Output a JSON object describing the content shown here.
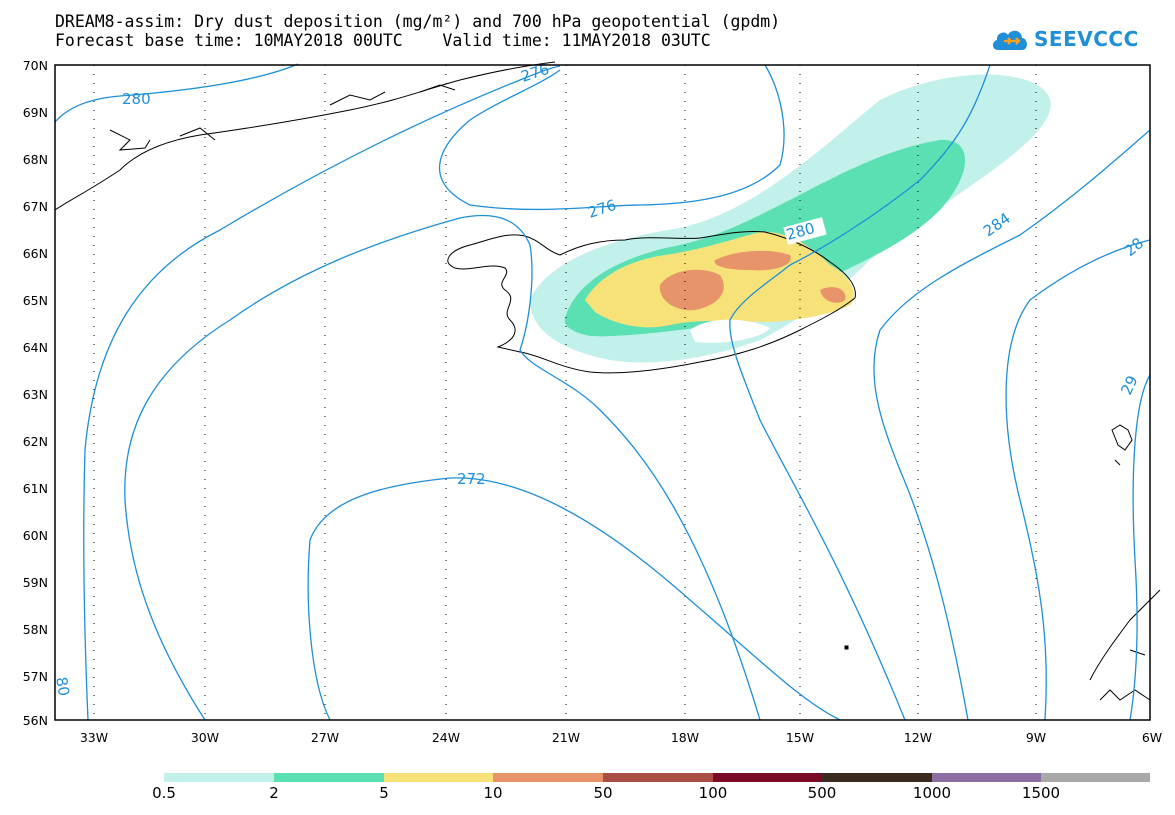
{
  "header": {
    "title_line1": "DREAM8-assim: Dry dust deposition (mg/m²) and 700 hPa geopotential (gpdm)",
    "title_line2": "Forecast base time: 10MAY2018 00UTC    Valid time: 11MAY2018 03UTC",
    "logo_text": "SEEVCCC"
  },
  "map": {
    "lat_labels": [
      "70N",
      "69N",
      "68N",
      "67N",
      "66N",
      "65N",
      "64N",
      "63N",
      "62N",
      "61N",
      "60N",
      "59N",
      "58N",
      "57N",
      "56N"
    ],
    "lon_labels": [
      "33W",
      "30W",
      "27W",
      "24W",
      "21W",
      "18W",
      "15W",
      "12W",
      "9W",
      "6W"
    ],
    "contour_labels": [
      "280",
      "276",
      "276",
      "280",
      "284",
      "28",
      "29",
      "272",
      "80"
    ],
    "contour_color": "#1e8fd8",
    "coastline_color": "#000000"
  },
  "legend": {
    "labels": [
      "0.5",
      "2",
      "5",
      "10",
      "50",
      "100",
      "500",
      "1000",
      "1500"
    ],
    "colors": [
      "#c2f0ea",
      "#5be0b4",
      "#f7e27a",
      "#e8946a",
      "#a84e45",
      "#7a0c28",
      "#3c2a1c",
      "#8d6ea3",
      "#a8a8a8"
    ]
  }
}
